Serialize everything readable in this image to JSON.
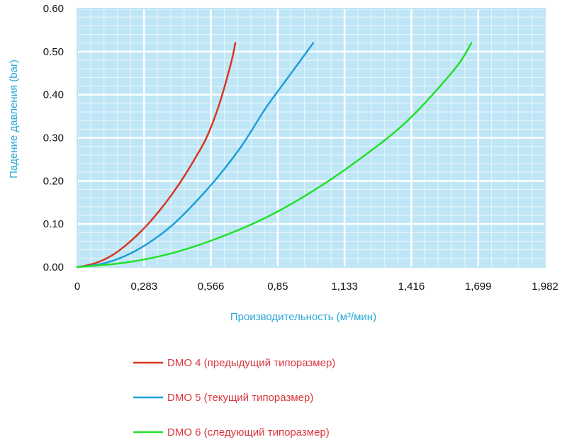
{
  "chart_data": {
    "type": "line",
    "xlabel": "Производительность (м³/мин)",
    "ylabel": "Падение давления (bar)",
    "xlim": [
      0,
      1.982
    ],
    "ylim": [
      0,
      0.6
    ],
    "x_ticks": [
      "0",
      "0,283",
      "0,566",
      "0,85",
      "1,133",
      "1,416",
      "1,699",
      "1,982"
    ],
    "y_ticks": [
      "0.00",
      "0.10",
      "0.20",
      "0.30",
      "0.40",
      "0.50",
      "0.60"
    ],
    "grid": true,
    "legend_position": "bottom-left",
    "series": [
      {
        "name": "DMO 4 (предыдущий типоразмер)",
        "color": "#d9361f",
        "x": [
          0,
          0.05,
          0.1,
          0.15,
          0.2,
          0.25,
          0.3,
          0.35,
          0.4,
          0.45,
          0.5,
          0.55,
          0.6,
          0.65,
          0.67
        ],
        "y": [
          0,
          0.005,
          0.014,
          0.028,
          0.048,
          0.072,
          0.1,
          0.132,
          0.168,
          0.208,
          0.253,
          0.303,
          0.375,
          0.47,
          0.52
        ]
      },
      {
        "name": "DMO 5 (текущий типоразмер)",
        "color": "#1e9fd8",
        "x": [
          0,
          0.1,
          0.2,
          0.3,
          0.4,
          0.5,
          0.6,
          0.7,
          0.8,
          0.9,
          1.0
        ],
        "y": [
          0,
          0.007,
          0.025,
          0.055,
          0.096,
          0.15,
          0.212,
          0.284,
          0.37,
          0.445,
          0.52
        ]
      },
      {
        "name": "DMO 6 (следующий типоразмер)",
        "color": "#22e02a",
        "x": [
          0,
          0.2,
          0.4,
          0.6,
          0.8,
          1.0,
          1.2,
          1.4,
          1.6,
          1.67
        ],
        "y": [
          0,
          0.01,
          0.032,
          0.068,
          0.115,
          0.177,
          0.252,
          0.34,
          0.46,
          0.52
        ]
      }
    ]
  }
}
